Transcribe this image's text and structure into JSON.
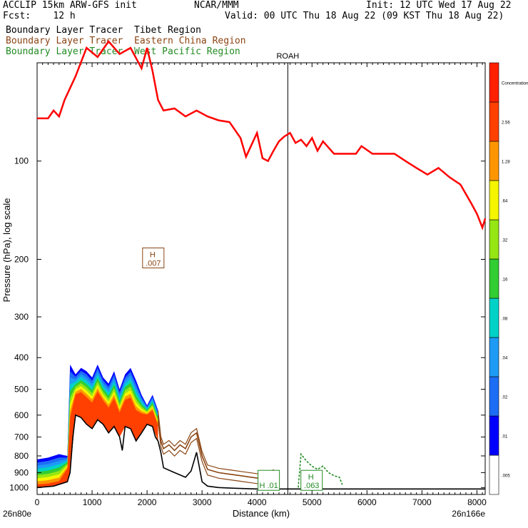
{
  "header": {
    "line1_left": "ACCLIP 15km ARW-GFS init",
    "line1_mid": "NCAR/MMM",
    "line1_right": "Init: 12 UTC Wed 17 Aug 22",
    "line2_left": "Fcst:    12 h",
    "line2_right": "Valid: 00 UTC Thu 18 Aug 22 (09 KST Thu 18 Aug 22)",
    "tracer_lines": [
      {
        "label": "Boundary Layer Tracer  Tibet Region",
        "color": "#000000"
      },
      {
        "label": "Boundary Layer Tracer  Eastern China Region",
        "color": "#8B4513"
      },
      {
        "label": "Boundary Layer Tracer  West Pacific Region",
        "color": "#228B22"
      }
    ]
  },
  "chart_data": {
    "type": "cross-section",
    "xlabel": "Distance (km)",
    "ylabel": "Pressure (hPa), log scale",
    "x_ticks": [
      0,
      1000,
      2000,
      3000,
      4000,
      5000,
      6000,
      7000,
      8000
    ],
    "x_range": [
      0,
      8150
    ],
    "y_ticks": [
      100,
      200,
      300,
      400,
      500,
      600,
      700,
      800,
      900,
      1000
    ],
    "y_range": [
      50,
      1050
    ],
    "y_scale": "log",
    "left_end_label": "26n80e",
    "right_end_label": "26n166e",
    "station": {
      "name": "ROAH",
      "x": 4560
    },
    "annotations": [
      {
        "text_top": "H",
        "text_bottom": ".007",
        "x": 2100,
        "p": 200,
        "color": "#8B4513"
      },
      {
        "text_top": "H",
        "text_bottom": ".063",
        "x": 4980,
        "p": 960,
        "color": "#228B22"
      },
      {
        "text_top": "",
        "text_bottom": "H .01",
        "x": 4200,
        "p": 960,
        "color": "#228B22"
      }
    ],
    "colorbar": {
      "labels": [
        ".005",
        ".01",
        ".02",
        ".04",
        ".08",
        ".16",
        ".32",
        ".64",
        "1.28",
        "2.56",
        "Concentration"
      ],
      "colors": [
        "#ffffff",
        "#0000ff",
        "#1e6ef5",
        "#1e9bf5",
        "#00d2c8",
        "#32cd32",
        "#96e614",
        "#f5f500",
        "#ff9600",
        "#ff4000",
        "#ff2000"
      ]
    },
    "tropopause": {
      "color": "#ff0000",
      "x": [
        0,
        200,
        300,
        400,
        500,
        700,
        900,
        1100,
        1300,
        1500,
        1700,
        1900,
        2000,
        2100,
        2200,
        2300,
        2500,
        2700,
        2900,
        3100,
        3300,
        3500,
        3700,
        3800,
        4000,
        4100,
        4200,
        4300,
        4400,
        4500,
        4600,
        4700,
        4800,
        4900,
        5000,
        5100,
        5200,
        5400,
        5600,
        5800,
        5900,
        6100,
        6300,
        6500,
        6700,
        6900,
        7100,
        7300,
        7500,
        7700,
        7900,
        8000,
        8100,
        8150
      ],
      "p": [
        74,
        74,
        70,
        73,
        65,
        55,
        45,
        48,
        43,
        47,
        45,
        52,
        45,
        53,
        65,
        70,
        69,
        73,
        70,
        73,
        75,
        76,
        85,
        97,
        82,
        98,
        100,
        93,
        87,
        84,
        82,
        88,
        86,
        90,
        85,
        93,
        87,
        95,
        95,
        95,
        90,
        95,
        95,
        95,
        100,
        105,
        110,
        105,
        112,
        118,
        135,
        145,
        160,
        150
      ]
    },
    "concentration_top": {
      "x": [
        0,
        200,
        400,
        550,
        600,
        700,
        800,
        900,
        1000,
        1100,
        1200,
        1300,
        1400,
        1500,
        1600,
        1700,
        1800,
        1900,
        2000,
        2100,
        2200
      ],
      "p": [
        820,
        810,
        790,
        800,
        420,
        450,
        430,
        440,
        460,
        420,
        460,
        480,
        440,
        500,
        450,
        430,
        470,
        520,
        560,
        520,
        580
      ]
    },
    "tibet_terrain": {
      "color": "#000000",
      "x": [
        0,
        300,
        550,
        600,
        650,
        700,
        800,
        900,
        1000,
        1100,
        1200,
        1300,
        1400,
        1500,
        1550,
        1600,
        1700,
        1800,
        1900,
        2000,
        2100,
        2150,
        2200,
        2250,
        2300,
        2500,
        2700,
        2800,
        2900,
        3000,
        3100,
        3300,
        3600,
        4000,
        4500,
        5000,
        5500,
        6000,
        7000,
        8150
      ],
      "p": [
        1000,
        990,
        960,
        900,
        700,
        600,
        610,
        640,
        660,
        620,
        640,
        680,
        650,
        700,
        770,
        650,
        660,
        720,
        680,
        640,
        650,
        700,
        720,
        780,
        870,
        900,
        930,
        890,
        780,
        960,
        990,
        1000,
        1005,
        1010,
        1010,
        1010,
        1010,
        1010,
        1010,
        1010
      ]
    },
    "china_contour": {
      "color": "#8B4513",
      "x": [
        2200,
        2250,
        2300,
        2400,
        2500,
        2600,
        2700,
        2800,
        2900,
        3000,
        3100,
        3300,
        3500,
        3700,
        3900,
        4100,
        4300,
        4400
      ],
      "p": [
        600,
        720,
        760,
        740,
        770,
        740,
        760,
        700,
        680,
        800,
        880,
        900,
        910,
        920,
        930,
        940,
        910,
        960
      ]
    },
    "pacific_contour": {
      "color": "#228B22",
      "x": [
        4750,
        4800,
        4900,
        5000,
        5100,
        5200,
        5300,
        5400,
        5500,
        5550
      ],
      "p": [
        1000,
        790,
        830,
        860,
        880,
        860,
        900,
        920,
        930,
        980
      ]
    }
  }
}
